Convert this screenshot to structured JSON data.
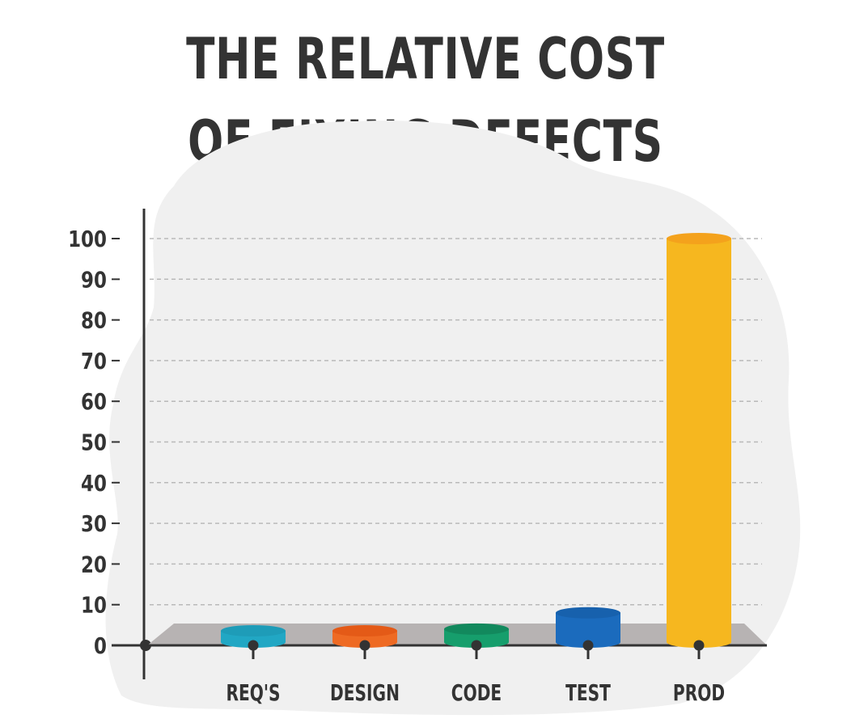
{
  "title_lines": [
    "THE RELATIVE COST",
    "OF FIXING DEFECTS"
  ],
  "chart_data": {
    "type": "bar",
    "title": "THE RELATIVE COST OF FIXING DEFECTS",
    "categories": [
      "REQ'S",
      "DESIGN",
      "CODE",
      "TEST",
      "PROD"
    ],
    "values": [
      1,
      1,
      4,
      8,
      100
    ],
    "colors": [
      "#21a7c4",
      "#ee6a23",
      "#169e6c",
      "#1b6bbd",
      "#f6b71f"
    ],
    "top_colors": [
      "#1e9cb8",
      "#e45a17",
      "#12895d",
      "#1761ad",
      "#f4a21c"
    ],
    "ylim": [
      0,
      100
    ],
    "yticks": [
      0,
      10,
      20,
      30,
      40,
      50,
      60,
      70,
      80,
      90,
      100
    ],
    "grid": true,
    "xlabel": "",
    "ylabel": ""
  }
}
